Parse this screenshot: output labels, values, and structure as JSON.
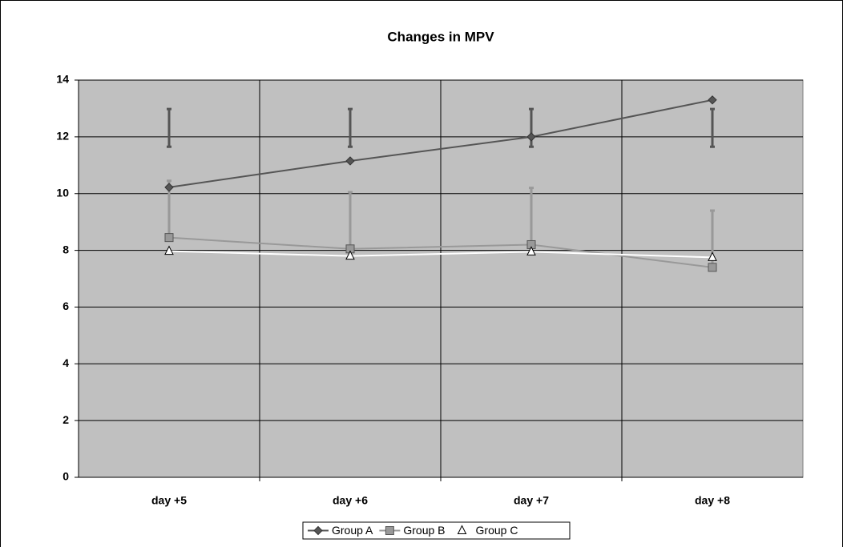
{
  "chart_data": {
    "type": "line",
    "title": "Changes in MPV",
    "categories": [
      "day +5",
      "day +6",
      "day +7",
      "day +8"
    ],
    "series": [
      {
        "name": "Group A",
        "color": "#555555",
        "marker": "diamond",
        "values": [
          10.22,
          11.15,
          12.0,
          13.3
        ],
        "error_low": [
          11.65,
          11.65,
          11.65,
          11.65
        ],
        "error_high": [
          12.98,
          12.98,
          12.98,
          12.98
        ]
      },
      {
        "name": "Group B",
        "color": "#999999",
        "marker": "square",
        "values": [
          8.45,
          8.05,
          8.2,
          7.4
        ],
        "error_plus": [
          2.0,
          2.0,
          2.0,
          2.0
        ]
      },
      {
        "name": "Group C",
        "color": "#ffffff",
        "marker": "triangle",
        "values": [
          7.97,
          7.8,
          7.95,
          7.75
        ]
      }
    ],
    "ylim": [
      0,
      14
    ],
    "yticks": [
      0,
      2,
      4,
      6,
      8,
      10,
      12,
      14
    ],
    "grid": true,
    "legend": "bottom"
  }
}
